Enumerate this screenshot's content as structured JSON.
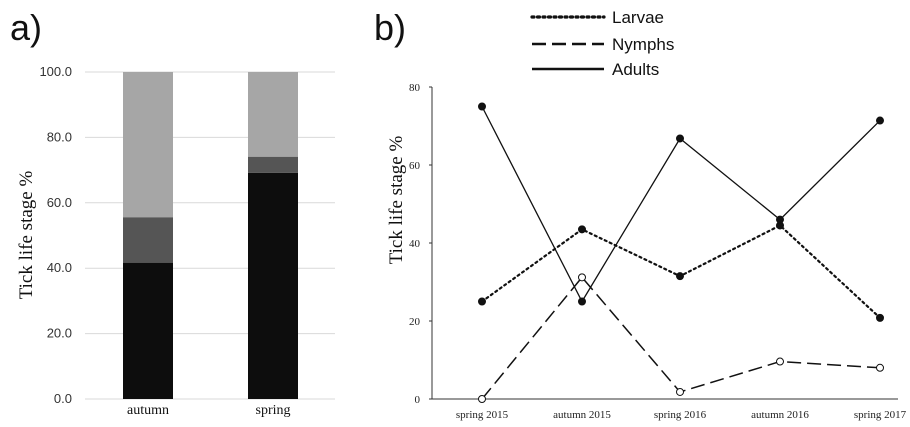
{
  "panel_a_letter": "a)",
  "panel_b_letter": "b)",
  "colors": {
    "stack_bottom": "#0d0d0d",
    "stack_middle": "#555555",
    "stack_top": "#a6a6a6",
    "grid": "#d9d9d9",
    "line": "#111111"
  },
  "chart_data": [
    {
      "type": "bar",
      "stacked": true,
      "title": "",
      "xlabel": "",
      "ylabel": "Tick life stage %",
      "categories": [
        "autumn",
        "spring"
      ],
      "series": [
        {
          "values": [
            41.7,
            69.2
          ]
        },
        {
          "values": [
            13.9,
            4.9
          ]
        },
        {
          "values": [
            44.4,
            25.9
          ]
        }
      ],
      "ylim": [
        0,
        100
      ],
      "yticks": [
        "0.0",
        "20.0",
        "40.0",
        "60.0",
        "80.0",
        "100.0"
      ],
      "grid": true,
      "legend": "none"
    },
    {
      "type": "line",
      "title": "",
      "xlabel": "",
      "ylabel": "Tick life stage %",
      "categories": [
        "spring 2015",
        "autumn 2015",
        "spring 2016",
        "autumn 2016",
        "spring 2017"
      ],
      "series": [
        {
          "name": "Larvae",
          "style": "dotted",
          "marker": "filled",
          "values": [
            25,
            43.5,
            31.5,
            44.5,
            20.8
          ]
        },
        {
          "name": "Nymphs",
          "style": "dashed",
          "marker": "open",
          "values": [
            0,
            31.2,
            1.8,
            9.6,
            8
          ]
        },
        {
          "name": "Adults",
          "style": "solid",
          "marker": "filled",
          "values": [
            75,
            25,
            66.8,
            46,
            71.4
          ]
        }
      ],
      "ylim": [
        0,
        80
      ],
      "yticks": [
        "0",
        "20",
        "40",
        "60",
        "80"
      ],
      "grid": false,
      "legend": "top-center"
    }
  ]
}
